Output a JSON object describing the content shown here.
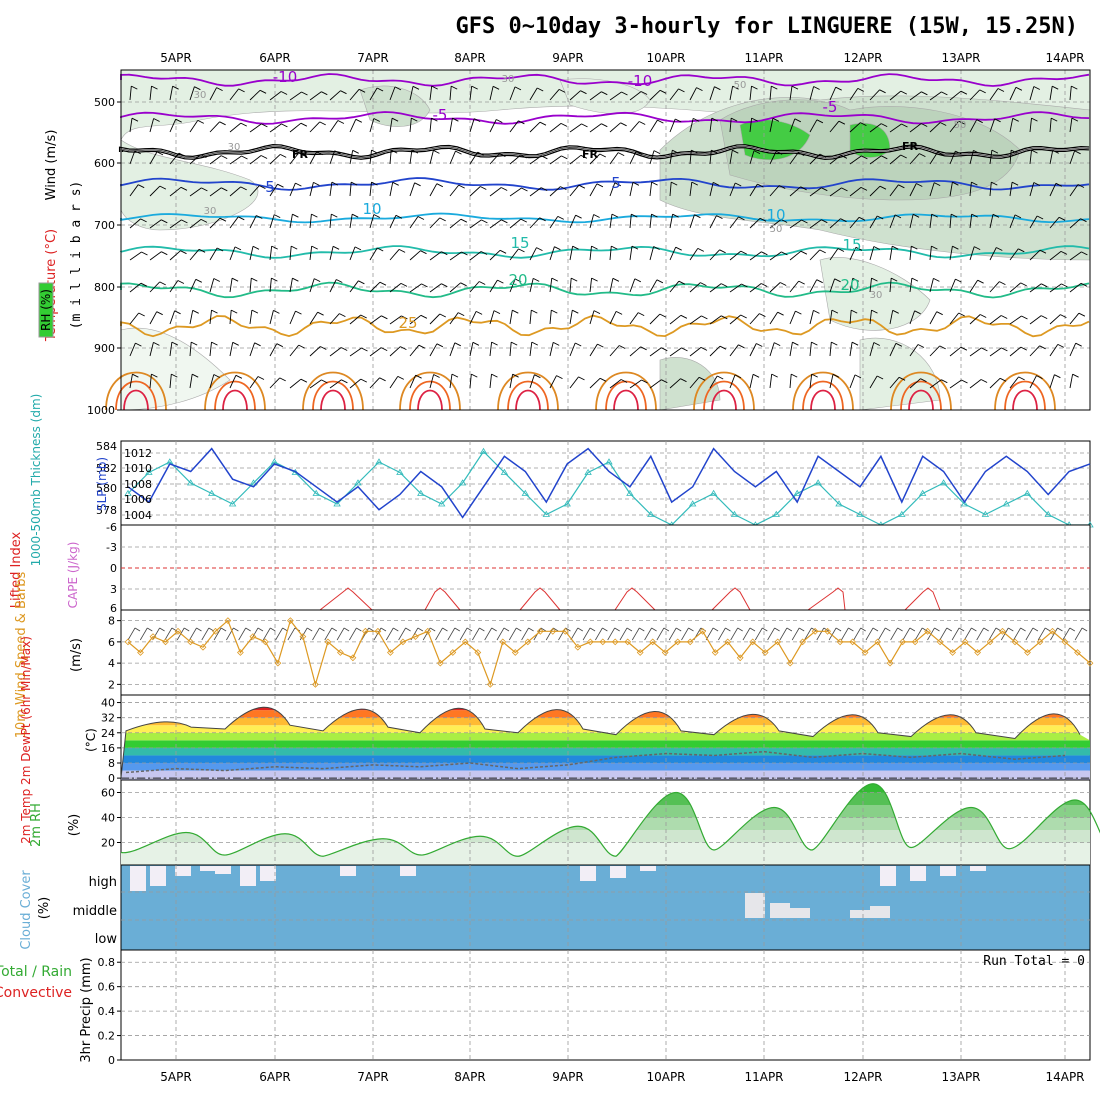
{
  "title": "GFS 0~10day 3-hourly for LINGUERE (15W, 15.25N)",
  "dates": [
    "5APR",
    "6APR",
    "7APR",
    "8APR",
    "9APR",
    "10APR",
    "11APR",
    "12APR",
    "13APR",
    "14APR"
  ],
  "colors": {
    "rh_green": "#33cc33",
    "temp_purple": "#9900cc",
    "temp_blue": "#2244cc",
    "temp_cyan": "#1aaadd",
    "temp_teal": "#22bbaa",
    "temp_orange": "#dd9922",
    "slp": "#2244cc",
    "thickness": "#33bbbb",
    "lifted": "#dd3333",
    "wind": "#dd9922",
    "rh2m": "#33aa33",
    "cloud_blue": "#6aaed6"
  },
  "panels": {
    "upper": {
      "ylabel_wind": "Wind (m/s)",
      "ylabel_temp": "Temperature (°C)",
      "ylabel_rh": "RH (%)",
      "ylabel_mb": "(m i l l i b a r s)",
      "ticks": [
        "500",
        "600",
        "700",
        "800",
        "900",
        "1000"
      ],
      "contour_labels": [
        "-10",
        "-5",
        "FR",
        "5",
        "10",
        "15",
        "20",
        "25",
        "-10",
        "-5",
        "FR",
        "5",
        "10",
        "15",
        "20",
        "FR",
        "-5",
        "5",
        "10",
        "15",
        "20"
      ],
      "rh_labels": [
        "30",
        "30",
        "30",
        "30",
        "50",
        "50",
        "50",
        "30"
      ]
    },
    "slp": {
      "ylabel_thick": "1000-500mb Thickness (dm)",
      "ylabel_slp": "SLP (mb)",
      "left_ticks": [
        "584",
        "582",
        "580",
        "578"
      ],
      "right_ticks": [
        "1012",
        "1010",
        "1008",
        "1006",
        "1004"
      ]
    },
    "cape": {
      "ylabel_li": "Lifted Index",
      "ylabel_cape": "CAPE (J/kg)",
      "ticks": [
        "-6",
        "-3",
        "0",
        "3",
        "6"
      ]
    },
    "wind": {
      "ylabel": "10m Wind Speed & Barbs",
      "unit": "(m/s)",
      "ticks": [
        "8",
        "6",
        "4",
        "2"
      ]
    },
    "temp": {
      "ylabel": "2m Temp 2m DewPt (6hr Min/Max)",
      "unit": "(°C)",
      "ticks": [
        "40",
        "32",
        "24",
        "16",
        "8",
        "0"
      ]
    },
    "rh": {
      "ylabel": "2m RH",
      "unit": "(%)",
      "ticks": [
        "60",
        "40",
        "20"
      ]
    },
    "cloud": {
      "ylabel": "Cloud Cover",
      "unit": "(%)",
      "levels": [
        "high",
        "middle",
        "low"
      ]
    },
    "precip": {
      "ylabel_total": "Total / Rain",
      "ylabel_conv": "Convective",
      "ylabel": "3hr Precip (mm)",
      "ticks": [
        "0.8",
        "0.6",
        "0.4",
        "0.2",
        "0"
      ],
      "run_total": "Run Total = 0"
    }
  },
  "chart_data": [
    {
      "type": "line",
      "name": "SLP (mb)",
      "x": [
        "5APR",
        "6APR",
        "7APR",
        "8APR",
        "9APR",
        "10APR",
        "11APR",
        "12APR",
        "13APR",
        "14APR"
      ],
      "series": [
        {
          "name": "SLP (mb)",
          "values_ymin_ymax": [
            1004,
            1012
          ],
          "ylim": [
            1003,
            1014
          ]
        },
        {
          "name": "1000-500mb Thickness (dm)",
          "ylim": [
            577,
            585
          ]
        }
      ]
    },
    {
      "type": "line",
      "name": "10m Wind Speed",
      "series": [
        {
          "name": "Speed (m/s)",
          "values": [
            6,
            5,
            6.5,
            6,
            7,
            6,
            5.5,
            7,
            8,
            5,
            6.5,
            6,
            4,
            8,
            6.5,
            2,
            6,
            5,
            4.5,
            7,
            7,
            5,
            6,
            6.5,
            7,
            4,
            5,
            6,
            5,
            2,
            6,
            5,
            6,
            7,
            7,
            7,
            5.5,
            6,
            6,
            6,
            6,
            5,
            6,
            5,
            6,
            6,
            7,
            5,
            6,
            4.5,
            6,
            5,
            6,
            4,
            6,
            7,
            7,
            6,
            6,
            5,
            6,
            4,
            6,
            6,
            7,
            6,
            5,
            6,
            5,
            6,
            7,
            6,
            5,
            6,
            7,
            6,
            5,
            4
          ]
        },
        {
          "name": "ylim",
          "values": [
            1,
            9
          ]
        }
      ]
    },
    {
      "type": "area",
      "name": "2m Temp",
      "series": [
        {
          "name": "Daily max (°C)",
          "values": [
            31,
            41,
            40,
            41,
            40,
            39,
            37,
            37,
            37,
            38
          ]
        },
        {
          "name": "Daily min (°C)",
          "values": [
            25,
            26,
            25,
            24,
            24,
            23,
            23,
            22,
            22,
            21
          ]
        },
        {
          "name": "DewPt (°C)",
          "values": [
            3,
            4,
            5,
            6,
            5,
            11,
            12,
            11,
            11,
            10
          ]
        }
      ],
      "ylim": [
        -1,
        44
      ]
    },
    {
      "type": "area",
      "name": "2m RH",
      "series": [
        {
          "name": "Daily max (%)",
          "values": [
            28,
            27,
            23,
            25,
            33,
            60,
            48,
            67,
            48,
            54
          ]
        },
        {
          "name": "Daily min (%)",
          "values": [
            10,
            9,
            10,
            9,
            9,
            14,
            14,
            16,
            15,
            15
          ]
        }
      ],
      "ylim": [
        2,
        70
      ]
    },
    {
      "type": "bar",
      "name": "3hr Precip",
      "values": [
        0
      ],
      "ylim": [
        0,
        0.9
      ]
    }
  ]
}
